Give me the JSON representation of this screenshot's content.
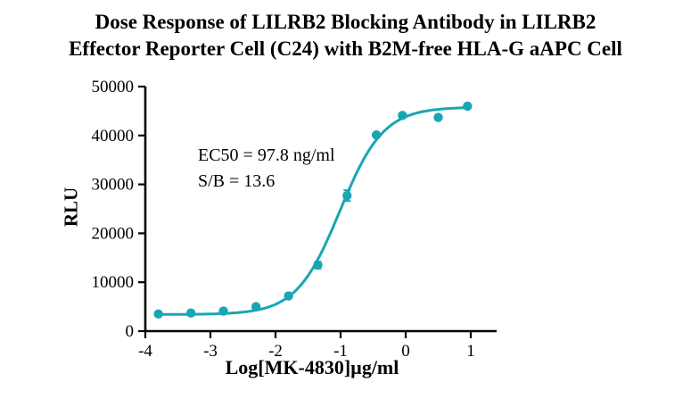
{
  "title": {
    "line1": "Dose Response of LILRB2 Blocking Antibody in LILRB2",
    "line2": "Effector Reporter Cell (C24) with B2M-free HLA-G aAPC Cell"
  },
  "chart_data": {
    "type": "scatter",
    "title": "Dose Response of LILRB2 Blocking Antibody in LILRB2 Effector Reporter Cell (C24) with B2M-free HLA-G aAPC Cell",
    "xlabel": "Log[MK-4830]µg/ml",
    "ylabel": "RLU",
    "xlim": [
      -4,
      1.4
    ],
    "ylim": [
      0,
      50000
    ],
    "x_ticks": [
      -4,
      -3,
      -2,
      -1,
      0,
      1
    ],
    "y_ticks": [
      0,
      10000,
      20000,
      30000,
      40000,
      50000
    ],
    "grid": false,
    "legend": "none",
    "annotations": [
      "EC50 = 97.8 ng/ml",
      "S/B = 13.6"
    ],
    "series": [
      {
        "name": "MK-4830 dose response",
        "color": "#18a6b4",
        "x": [
          -3.8,
          -3.3,
          -2.8,
          -2.3,
          -1.8,
          -1.35,
          -0.9,
          -0.45,
          -0.05,
          0.5,
          0.95
        ],
        "y": [
          3500,
          3700,
          4100,
          5000,
          7200,
          13500,
          27700,
          40100,
          44100,
          43700,
          46000
        ],
        "y_err": [
          250,
          250,
          250,
          300,
          350,
          700,
          1100,
          400,
          300,
          300,
          300
        ]
      }
    ],
    "fit": {
      "model": "4PL sigmoid",
      "bottom": 3400,
      "top": 45800,
      "log_ec50": -1.01,
      "hill": 1.3
    }
  },
  "colors": {
    "curve": "#18a6b4",
    "axis": "#000000",
    "background": "#ffffff"
  }
}
